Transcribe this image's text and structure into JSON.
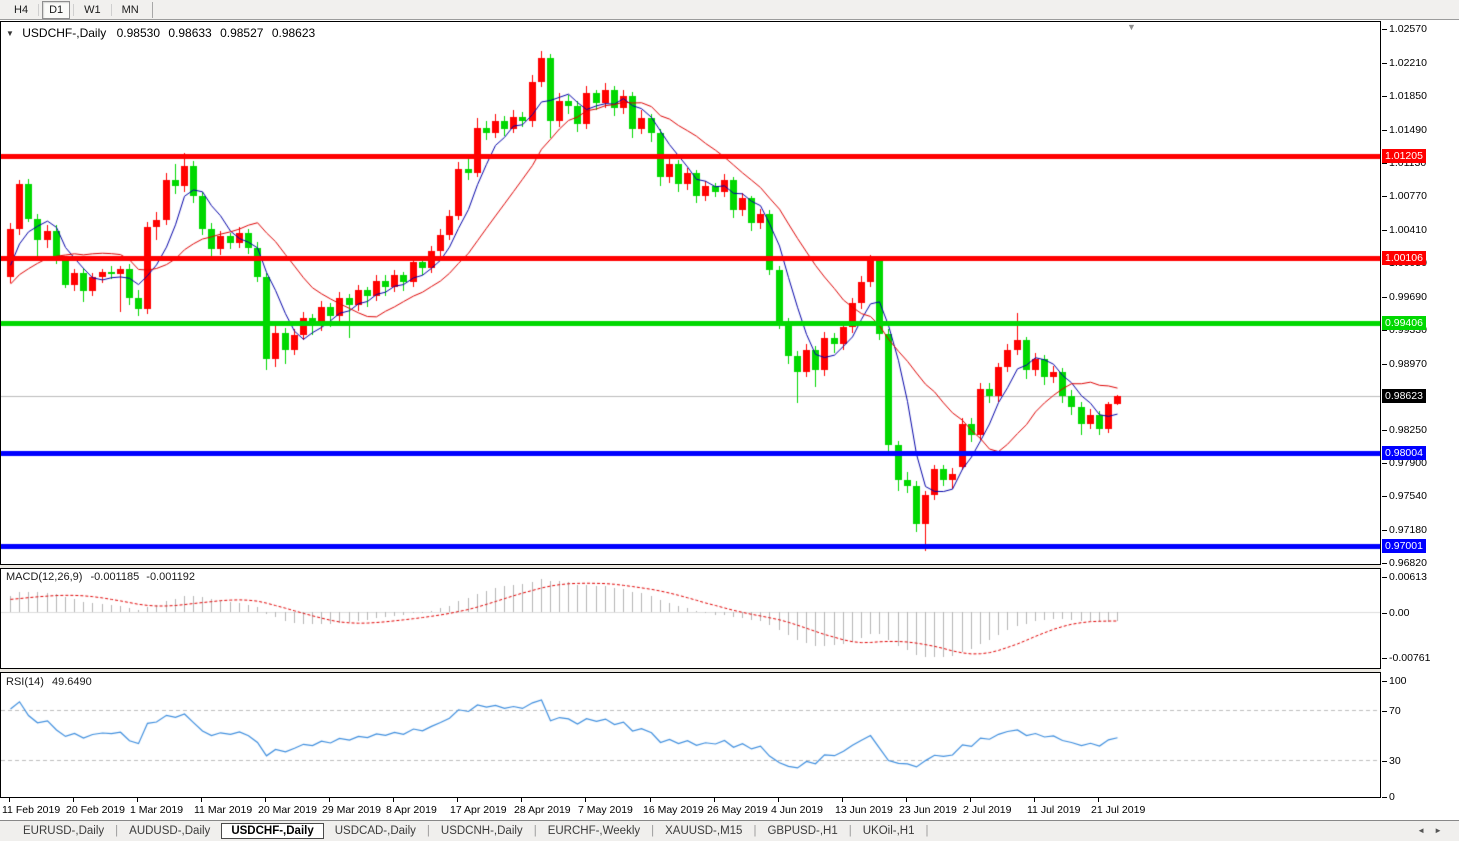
{
  "toolbar": {
    "timeframes": [
      {
        "label": "H4",
        "active": false
      },
      {
        "label": "D1",
        "active": true
      },
      {
        "label": "W1",
        "active": false
      },
      {
        "label": "MN",
        "active": false
      }
    ]
  },
  "icons": {
    "dropdown": "▼",
    "shift_marker": "▼",
    "tab_left": "◄",
    "tab_right": "►"
  },
  "chart": {
    "title": {
      "symbol": "USDCHF-,Daily",
      "open": "0.98530",
      "high": "0.98633",
      "low": "0.98527",
      "close": "0.98623"
    }
  },
  "indicators": {
    "macd": {
      "name": "MACD(12,26,9)",
      "value_main": "-0.001185",
      "value_signal": "-0.001192"
    },
    "rsi": {
      "name": "RSI(14)",
      "value": "49.6490"
    }
  },
  "tabs": {
    "items": [
      {
        "label": "EURUSD-,Daily",
        "active": false
      },
      {
        "label": "AUDUSD-,Daily",
        "active": false
      },
      {
        "label": "USDCHF-,Daily",
        "active": true
      },
      {
        "label": "USDCAD-,Daily",
        "active": false
      },
      {
        "label": "USDCNH-,Daily",
        "active": false
      },
      {
        "label": "EURCHF-,Weekly",
        "active": false
      },
      {
        "label": "XAUUSD-,M15",
        "active": false
      },
      {
        "label": "GBPUSD-,H1",
        "active": false
      },
      {
        "label": "UKOil-,H1",
        "active": false
      }
    ]
  },
  "colors": {
    "candle_up": "#FF0000",
    "candle_down": "#00D800",
    "ma_fast": "#0000A8",
    "ma_slow": "#DD0000",
    "level_red": "#FF0000",
    "level_green": "#00D800",
    "level_blue": "#0000FF",
    "bid_line": "#BBBBBB",
    "bid_label_bg": "#000000",
    "macd_hist": "#B4B4B4",
    "macd_signal": "#E00000",
    "rsi_line": "#3E8EDE",
    "rsi_grid": "#BDBDBD"
  },
  "chart_data": {
    "type": "candlestick",
    "symbol": "USDCHF-",
    "timeframe": "Daily",
    "ylim": [
      0.96821,
      1.0265
    ],
    "price_axis_ticks": [
      1.0257,
      1.0221,
      1.0185,
      1.0149,
      1.0113,
      1.0077,
      1.0041,
      1.0005,
      0.9969,
      0.9933,
      0.9897,
      0.9825,
      0.979,
      0.9754,
      0.9718,
      0.9682
    ],
    "x_labels": [
      "11 Feb 2019",
      "20 Feb 2019",
      "1 Mar 2019",
      "11 Mar 2019",
      "20 Mar 2019",
      "29 Mar 2019",
      "8 Apr 2019",
      "17 Apr 2019",
      "28 Apr 2019",
      "7 May 2019",
      "16 May 2019",
      "26 May 2019",
      "4 Jun 2019",
      "13 Jun 2019",
      "23 Jun 2019",
      "2 Jul 2019",
      "11 Jul 2019",
      "21 Jul 2019"
    ],
    "x_label_every": 7,
    "bid": {
      "price": 0.98623,
      "label": "0.98623"
    },
    "levels": [
      {
        "price": 1.01205,
        "label": "1.01205",
        "color": "#FF0000"
      },
      {
        "price": 1.00106,
        "label": "1.00106",
        "color": "#FF0000"
      },
      {
        "price": 0.99406,
        "label": "0.99406",
        "color": "#00D800"
      },
      {
        "price": 0.98004,
        "label": "0.98004",
        "color": "#0000FF"
      },
      {
        "price": 0.97001,
        "label": "0.97001",
        "color": "#0000FF"
      }
    ],
    "ma": {
      "fast_period": 5,
      "slow_period": 13
    },
    "prehistory_closes": [
      0.988,
      0.9865,
      0.985,
      0.9862,
      0.9875,
      0.9855,
      0.984,
      0.9858,
      0.9872,
      0.9885,
      0.987,
      0.9882,
      0.9895,
      0.9908,
      0.992,
      0.9905,
      0.9918,
      0.993,
      0.9915,
      0.9928,
      0.994,
      0.9925,
      0.9938,
      0.995,
      0.9935,
      0.9948,
      0.996,
      0.9945,
      0.9958,
      0.997,
      0.9955,
      0.9968,
      0.998,
      0.9965,
      0.9978,
      0.999,
      0.9975,
      0.9988,
      1.0,
      1.0012
    ],
    "candles": [
      [
        0.999,
        1.0048,
        0.9984,
        1.0042
      ],
      [
        1.0042,
        1.0095,
        1.0036,
        1.009
      ],
      [
        1.009,
        1.0096,
        1.005,
        1.0053
      ],
      [
        1.0053,
        1.0058,
        1.001,
        1.003
      ],
      [
        1.003,
        1.0046,
        1.0022,
        1.004
      ],
      [
        1.004,
        1.0046,
        1.0004,
        1.0008
      ],
      [
        1.0008,
        1.0012,
        0.9978,
        0.9982
      ],
      [
        0.9982,
        0.9999,
        0.9975,
        0.9995
      ],
      [
        0.9995,
        1.0,
        0.9963,
        0.9975
      ],
      [
        0.9975,
        0.9995,
        0.997,
        0.999
      ],
      [
        0.999,
        0.9999,
        0.9984,
        0.9996
      ],
      [
        0.9996,
        1.0002,
        0.9988,
        0.9994
      ],
      [
        0.9994,
        1.0002,
        0.9953,
        0.9999
      ],
      [
        0.9999,
        1.0004,
        0.996,
        0.9968
      ],
      [
        0.9968,
        0.9976,
        0.9948,
        0.9956
      ],
      [
        0.9956,
        1.005,
        0.995,
        1.0044
      ],
      [
        1.0044,
        1.006,
        1.003,
        1.0052
      ],
      [
        1.0052,
        1.0102,
        1.0046,
        1.0095
      ],
      [
        1.0095,
        1.0112,
        1.008,
        1.0088
      ],
      [
        1.0088,
        1.0124,
        1.0082,
        1.011
      ],
      [
        1.011,
        1.0115,
        1.007,
        1.0078
      ],
      [
        1.0078,
        1.0082,
        1.0035,
        1.0042
      ],
      [
        1.0042,
        1.0048,
        1.0008,
        1.002
      ],
      [
        1.002,
        1.004,
        1.0014,
        1.0034
      ],
      [
        1.0034,
        1.0038,
        1.002,
        1.0027
      ],
      [
        1.0027,
        1.0044,
        1.0022,
        1.0038
      ],
      [
        1.0038,
        1.0042,
        1.0015,
        1.0022
      ],
      [
        1.0022,
        1.0028,
        0.9985,
        0.999
      ],
      [
        0.999,
        0.9995,
        0.989,
        0.9902
      ],
      [
        0.9902,
        0.9938,
        0.9893,
        0.993
      ],
      [
        0.993,
        0.9935,
        0.9896,
        0.9912
      ],
      [
        0.9912,
        0.9934,
        0.9906,
        0.9928
      ],
      [
        0.9928,
        0.9952,
        0.9922,
        0.9946
      ],
      [
        0.9946,
        0.995,
        0.9928,
        0.9938
      ],
      [
        0.9938,
        0.9964,
        0.9932,
        0.9958
      ],
      [
        0.9958,
        0.9962,
        0.9936,
        0.9948
      ],
      [
        0.9948,
        0.9974,
        0.9942,
        0.9968
      ],
      [
        0.9968,
        0.9972,
        0.9925,
        0.996
      ],
      [
        0.996,
        0.9982,
        0.9954,
        0.9976
      ],
      [
        0.9976,
        0.998,
        0.9958,
        0.997
      ],
      [
        0.997,
        0.9992,
        0.9964,
        0.9986
      ],
      [
        0.9986,
        0.9992,
        0.997,
        0.998
      ],
      [
        0.998,
        0.9998,
        0.9974,
        0.9992
      ],
      [
        0.9992,
        0.9996,
        0.9975,
        0.9985
      ],
      [
        0.9985,
        1.0012,
        0.998,
        1.0006
      ],
      [
        1.0006,
        1.0012,
        0.9992,
        1.0
      ],
      [
        1.0,
        1.0024,
        0.9995,
        1.0018
      ],
      [
        1.0018,
        1.0042,
        1.0012,
        1.0035
      ],
      [
        1.0035,
        1.0062,
        1.003,
        1.0056
      ],
      [
        1.0056,
        1.0114,
        1.0052,
        1.0107
      ],
      [
        1.0107,
        1.0118,
        1.0095,
        1.0102
      ],
      [
        1.0102,
        1.0162,
        1.0098,
        1.0151
      ],
      [
        1.0151,
        1.0158,
        1.0138,
        1.0145
      ],
      [
        1.0145,
        1.0166,
        1.014,
        1.0158
      ],
      [
        1.0158,
        1.0164,
        1.0142,
        1.015
      ],
      [
        1.015,
        1.017,
        1.0145,
        1.0163
      ],
      [
        1.0163,
        1.0168,
        1.0152,
        1.0158
      ],
      [
        1.0158,
        1.0208,
        1.0152,
        1.02
      ],
      [
        1.02,
        1.0234,
        1.0195,
        1.0226
      ],
      [
        1.0226,
        1.023,
        1.014,
        1.0158
      ],
      [
        1.0158,
        1.0188,
        1.0152,
        1.018
      ],
      [
        1.018,
        1.0186,
        1.0166,
        1.0175
      ],
      [
        1.0175,
        1.018,
        1.0146,
        1.0155
      ],
      [
        1.0155,
        1.0196,
        1.015,
        1.0188
      ],
      [
        1.0188,
        1.0192,
        1.017,
        1.0178
      ],
      [
        1.0178,
        1.0199,
        1.0172,
        1.0192
      ],
      [
        1.0192,
        1.0196,
        1.0164,
        1.0172
      ],
      [
        1.0172,
        1.0192,
        1.0166,
        1.0185
      ],
      [
        1.0185,
        1.019,
        1.014,
        1.015
      ],
      [
        1.015,
        1.017,
        1.0144,
        1.0162
      ],
      [
        1.0162,
        1.0166,
        1.0136,
        1.0145
      ],
      [
        1.0145,
        1.015,
        1.0088,
        1.0098
      ],
      [
        1.0098,
        1.0118,
        1.0092,
        1.0112
      ],
      [
        1.0112,
        1.0116,
        1.0082,
        1.009
      ],
      [
        1.009,
        1.0108,
        1.0084,
        1.0102
      ],
      [
        1.0102,
        1.0106,
        1.007,
        1.0078
      ],
      [
        1.0078,
        1.0094,
        1.0072,
        1.0088
      ],
      [
        1.0088,
        1.0092,
        1.0076,
        1.0082
      ],
      [
        1.0082,
        1.0101,
        1.0076,
        1.0095
      ],
      [
        1.0095,
        1.0098,
        1.0054,
        1.0062
      ],
      [
        1.0062,
        1.0081,
        1.0056,
        1.0075
      ],
      [
        1.0075,
        1.0078,
        1.004,
        1.0048
      ],
      [
        1.0048,
        1.0064,
        1.0042,
        1.0058
      ],
      [
        1.0058,
        1.0062,
        0.9992,
        0.9998
      ],
      [
        0.9998,
        1.0002,
        0.9934,
        0.9942
      ],
      [
        0.9942,
        0.9946,
        0.9896,
        0.9905
      ],
      [
        0.9905,
        0.991,
        0.9855,
        0.9888
      ],
      [
        0.9888,
        0.9918,
        0.9882,
        0.9912
      ],
      [
        0.9912,
        0.9916,
        0.9872,
        0.989
      ],
      [
        0.989,
        0.9931,
        0.9884,
        0.9925
      ],
      [
        0.9925,
        0.993,
        0.9908,
        0.9918
      ],
      [
        0.9918,
        0.9942,
        0.9912,
        0.9936
      ],
      [
        0.9936,
        0.9968,
        0.993,
        0.9962
      ],
      [
        0.9962,
        0.9991,
        0.9956,
        0.9985
      ],
      [
        0.9985,
        1.0014,
        0.998,
        1.0008
      ],
      [
        1.0008,
        1.0012,
        0.9922,
        0.9929
      ],
      [
        0.9929,
        0.9934,
        0.98,
        0.9809
      ],
      [
        0.9809,
        0.9814,
        0.976,
        0.9772
      ],
      [
        0.9772,
        0.978,
        0.9757,
        0.9765
      ],
      [
        0.9765,
        0.977,
        0.9716,
        0.9724
      ],
      [
        0.9724,
        0.976,
        0.9695,
        0.9755
      ],
      [
        0.9755,
        0.9788,
        0.975,
        0.9783
      ],
      [
        0.9783,
        0.9788,
        0.9765,
        0.9771
      ],
      [
        0.9771,
        0.9784,
        0.9762,
        0.9778
      ],
      [
        0.9786,
        0.9838,
        0.9782,
        0.9832
      ],
      [
        0.9832,
        0.9838,
        0.9812,
        0.982
      ],
      [
        0.982,
        0.9876,
        0.9815,
        0.987
      ],
      [
        0.987,
        0.9876,
        0.9855,
        0.9862
      ],
      [
        0.9862,
        0.9898,
        0.9856,
        0.9893
      ],
      [
        0.9893,
        0.9918,
        0.9888,
        0.9912
      ],
      [
        0.9912,
        0.9951,
        0.9906,
        0.9922
      ],
      [
        0.9922,
        0.9926,
        0.988,
        0.989
      ],
      [
        0.989,
        0.9908,
        0.9884,
        0.9902
      ],
      [
        0.9902,
        0.9906,
        0.9874,
        0.9882
      ],
      [
        0.9882,
        0.9894,
        0.9876,
        0.9888
      ],
      [
        0.9888,
        0.9892,
        0.9854,
        0.9862
      ],
      [
        0.9862,
        0.9868,
        0.9842,
        0.985
      ],
      [
        0.985,
        0.9856,
        0.982,
        0.9832
      ],
      [
        0.9832,
        0.9848,
        0.9826,
        0.9842
      ],
      [
        0.9842,
        0.9846,
        0.982,
        0.9826
      ],
      [
        0.9826,
        0.9856,
        0.9822,
        0.9853
      ],
      [
        0.9853,
        0.98633,
        0.98527,
        0.98623
      ]
    ],
    "macd": {
      "params": [
        12,
        26,
        9
      ],
      "value_main": -0.001185,
      "value_signal": -0.001192,
      "axis_labels": [
        {
          "v": 0.00613,
          "t": "0.00613"
        },
        {
          "v": 0,
          "t": "0.00"
        },
        {
          "v": -0.00761,
          "t": "-0.00761"
        }
      ]
    },
    "rsi": {
      "period": 14,
      "value": 49.649,
      "levels": [
        70,
        30
      ],
      "axis_labels": [
        {
          "v": 100,
          "t": "100"
        },
        {
          "v": 70,
          "t": "70"
        },
        {
          "v": 30,
          "t": "30"
        },
        {
          "v": 0,
          "t": "0"
        }
      ]
    }
  }
}
